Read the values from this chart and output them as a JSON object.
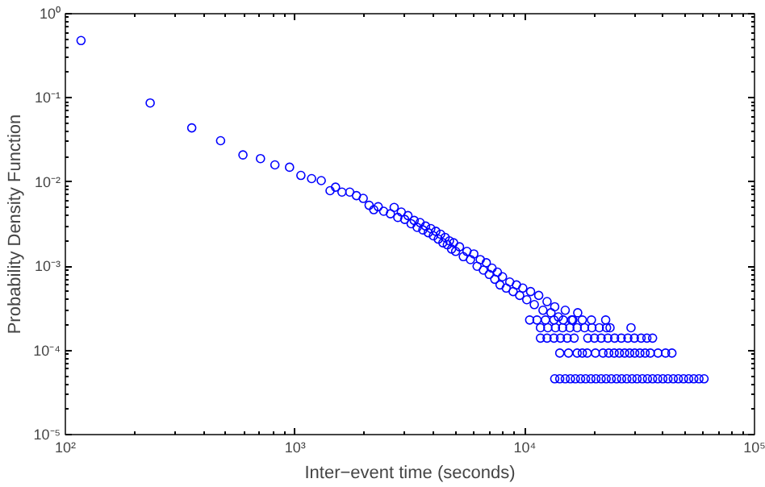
{
  "chart_data": {
    "type": "scatter",
    "xlabel": "Inter−event time (seconds)",
    "ylabel": "Probability Density Function",
    "log": "xy",
    "grid": false,
    "marker": "circle",
    "xlim": [
      100,
      100000
    ],
    "ylim": [
      1e-05,
      1
    ],
    "xticks": [
      {
        "value": 100,
        "label": "10²"
      },
      {
        "value": 1000,
        "label": "10³"
      },
      {
        "value": 10000,
        "label": "10⁴"
      },
      {
        "value": 100000,
        "label": "10⁵"
      }
    ],
    "yticks": [
      {
        "value": 1e-05,
        "label": "10⁻⁵"
      },
      {
        "value": 0.0001,
        "label": "10⁻⁴"
      },
      {
        "value": 0.001,
        "label": "10⁻³"
      },
      {
        "value": 0.01,
        "label": "10⁻²"
      },
      {
        "value": 0.1,
        "label": "10⁻¹"
      },
      {
        "value": 1,
        "label": "10⁰"
      }
    ],
    "series": [
      {
        "color": "#0000ff",
        "x": [
          117,
          234,
          355,
          474,
          593,
          707,
          817,
          946,
          1060,
          1180,
          1300,
          1420,
          1500,
          1600,
          1730,
          1850,
          1980,
          2100,
          2200,
          2300,
          2430,
          2600,
          2700,
          2800,
          2900,
          3000,
          3100,
          3200,
          3300,
          3400,
          3500,
          3600,
          3700,
          3800,
          3900,
          4000,
          4100,
          4200,
          4300,
          4400,
          4500,
          4600,
          4700,
          4800,
          4900,
          5000,
          5200,
          5400,
          5600,
          5800,
          6000,
          6200,
          6400,
          6600,
          6800,
          7000,
          7200,
          7400,
          7600,
          7800,
          8000,
          8300,
          8600,
          8900,
          9200,
          9500,
          9800,
          10200,
          10600,
          11000,
          11500,
          12000,
          12500,
          13000,
          13500,
          14000,
          15000,
          16000,
          17000,
          13500,
          14200,
          15000,
          15800,
          16600,
          17500,
          18400,
          19400,
          20400,
          21500,
          22600,
          23800,
          25100,
          26400,
          27800,
          29300,
          30800,
          32500,
          34200,
          36000,
          37900,
          39900,
          42000,
          44300,
          46600,
          49100,
          51700,
          54400,
          57300,
          60300,
          14200,
          15500,
          16900,
          17800,
          18700,
          20300,
          21900,
          23200,
          24500,
          25800,
          27200,
          28600,
          30100,
          31700,
          33400,
          35200,
          38000,
          41000,
          43700,
          11700,
          12500,
          13400,
          14300,
          15300,
          16400,
          18800,
          20100,
          21500,
          23000,
          24600,
          26300,
          28100,
          30000,
          32100,
          34000,
          36000,
          11700,
          12600,
          13600,
          14600,
          15700,
          16900,
          18200,
          19600,
          21100,
          22700,
          23500,
          29000,
          10500,
          11300,
          12300,
          13400,
          14700,
          16200,
          17800,
          19500,
          22500
        ],
        "values": [
          0.48,
          0.087,
          0.044,
          0.031,
          0.021,
          0.019,
          0.016,
          0.015,
          0.012,
          0.011,
          0.0104,
          0.0079,
          0.0087,
          0.0076,
          0.0076,
          0.0069,
          0.0064,
          0.0053,
          0.0047,
          0.0051,
          0.0045,
          0.0042,
          0.005,
          0.0038,
          0.0044,
          0.0036,
          0.004,
          0.0032,
          0.0035,
          0.0029,
          0.0033,
          0.0027,
          0.003,
          0.0025,
          0.0028,
          0.0023,
          0.0026,
          0.0021,
          0.0024,
          0.0019,
          0.0022,
          0.0018,
          0.002,
          0.0016,
          0.0019,
          0.0015,
          0.0017,
          0.0013,
          0.0015,
          0.0012,
          0.0014,
          0.001,
          0.0012,
          0.0009,
          0.0011,
          0.0008,
          0.00095,
          0.0007,
          0.00085,
          0.0006,
          0.00075,
          0.00055,
          0.00065,
          0.0005,
          0.0006,
          0.00045,
          0.00055,
          0.0004,
          0.0005,
          0.00035,
          0.00045,
          0.0003,
          0.00038,
          0.00028,
          0.00033,
          0.00025,
          0.0003,
          0.00023,
          0.00028,
          4.6e-05,
          4.6e-05,
          4.6e-05,
          4.6e-05,
          4.6e-05,
          4.6e-05,
          4.6e-05,
          4.6e-05,
          4.6e-05,
          4.6e-05,
          4.6e-05,
          4.6e-05,
          4.6e-05,
          4.6e-05,
          4.6e-05,
          4.6e-05,
          4.6e-05,
          4.6e-05,
          4.6e-05,
          4.6e-05,
          4.6e-05,
          4.6e-05,
          4.6e-05,
          4.6e-05,
          4.6e-05,
          4.6e-05,
          4.6e-05,
          4.6e-05,
          4.6e-05,
          4.6e-05,
          9.3e-05,
          9.3e-05,
          9.3e-05,
          9.3e-05,
          9.3e-05,
          9.3e-05,
          9.3e-05,
          9.3e-05,
          9.3e-05,
          9.3e-05,
          9.3e-05,
          9.3e-05,
          9.3e-05,
          9.3e-05,
          9.3e-05,
          9.3e-05,
          9.3e-05,
          9.3e-05,
          9.3e-05,
          0.00014,
          0.00014,
          0.00014,
          0.00014,
          0.00014,
          0.00014,
          0.00014,
          0.00014,
          0.00014,
          0.00014,
          0.00014,
          0.00014,
          0.00014,
          0.00014,
          0.00014,
          0.00014,
          0.00014,
          0.000186,
          0.000186,
          0.000186,
          0.000186,
          0.000186,
          0.000186,
          0.000186,
          0.000186,
          0.000186,
          0.000186,
          0.000186,
          0.000186,
          0.00023,
          0.00023,
          0.00023,
          0.00023,
          0.00023,
          0.00023,
          0.00023,
          0.00023,
          0.00023
        ]
      }
    ]
  }
}
